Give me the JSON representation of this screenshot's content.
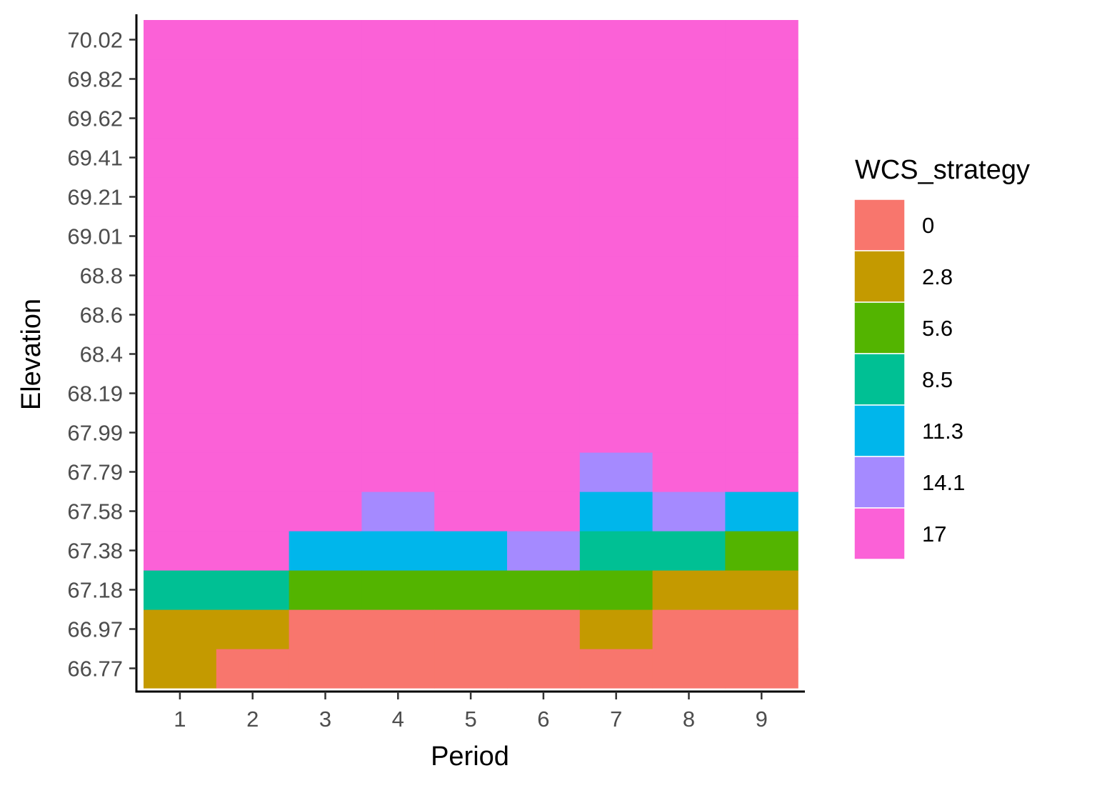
{
  "chart_data": {
    "type": "heatmap",
    "title": "",
    "xlabel": "Period",
    "ylabel": "Elevation",
    "x": [
      "1",
      "2",
      "3",
      "4",
      "5",
      "6",
      "7",
      "8",
      "9"
    ],
    "y": [
      "66.77",
      "66.97",
      "67.18",
      "67.38",
      "67.58",
      "67.79",
      "67.99",
      "68.19",
      "68.4",
      "68.6",
      "68.8",
      "69.01",
      "69.21",
      "69.41",
      "69.62",
      "69.82",
      "70.02"
    ],
    "legend": {
      "title": "WCS_strategy",
      "position": "right",
      "levels": [
        {
          "label": "0",
          "color": "#F8766D"
        },
        {
          "label": "2.8",
          "color": "#C49A00"
        },
        {
          "label": "5.6",
          "color": "#53B400"
        },
        {
          "label": "8.5",
          "color": "#00C094"
        },
        {
          "label": "11.3",
          "color": "#00B6EB"
        },
        {
          "label": "14.1",
          "color": "#A58AFF"
        },
        {
          "label": "17",
          "color": "#FB61D7"
        }
      ]
    },
    "cells_by_column": [
      [
        "2.8",
        "2.8",
        "8.5",
        "17",
        "17",
        "17",
        "17",
        "17",
        "17",
        "17",
        "17",
        "17",
        "17",
        "17",
        "17",
        "17",
        "17"
      ],
      [
        "0",
        "2.8",
        "8.5",
        "17",
        "17",
        "17",
        "17",
        "17",
        "17",
        "17",
        "17",
        "17",
        "17",
        "17",
        "17",
        "17",
        "17"
      ],
      [
        "0",
        "0",
        "5.6",
        "11.3",
        "17",
        "17",
        "17",
        "17",
        "17",
        "17",
        "17",
        "17",
        "17",
        "17",
        "17",
        "17",
        "17"
      ],
      [
        "0",
        "0",
        "5.6",
        "11.3",
        "14.1",
        "17",
        "17",
        "17",
        "17",
        "17",
        "17",
        "17",
        "17",
        "17",
        "17",
        "17",
        "17"
      ],
      [
        "0",
        "0",
        "5.6",
        "11.3",
        "17",
        "17",
        "17",
        "17",
        "17",
        "17",
        "17",
        "17",
        "17",
        "17",
        "17",
        "17",
        "17"
      ],
      [
        "0",
        "0",
        "5.6",
        "14.1",
        "17",
        "17",
        "17",
        "17",
        "17",
        "17",
        "17",
        "17",
        "17",
        "17",
        "17",
        "17",
        "17"
      ],
      [
        "0",
        "2.8",
        "5.6",
        "8.5",
        "11.3",
        "14.1",
        "17",
        "17",
        "17",
        "17",
        "17",
        "17",
        "17",
        "17",
        "17",
        "17",
        "17"
      ],
      [
        "0",
        "0",
        "2.8",
        "8.5",
        "14.1",
        "17",
        "17",
        "17",
        "17",
        "17",
        "17",
        "17",
        "17",
        "17",
        "17",
        "17",
        "17"
      ],
      [
        "0",
        "0",
        "2.8",
        "5.6",
        "11.3",
        "17",
        "17",
        "17",
        "17",
        "17",
        "17",
        "17",
        "17",
        "17",
        "17",
        "17",
        "17"
      ]
    ],
    "grid": false
  }
}
